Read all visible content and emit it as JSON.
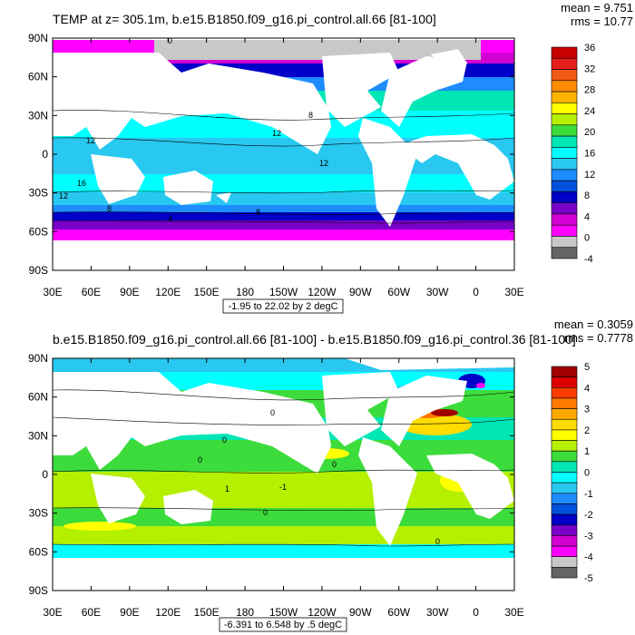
{
  "colors": {
    "land": "#ffffff",
    "frame": "#000000",
    "seaice_gray": "#c8c8c8"
  },
  "panels": [
    {
      "title": "TEMP at z= 305.1m, b.e15.B1850.f09_g16.pi_control.all.66 [81-100]",
      "stats": [
        "mean = 9.751",
        "rms = 10.77"
      ],
      "range_label": "-1.95 to 22.02 by 2 degC",
      "contour_labels": [
        "0",
        "8",
        "12",
        "12",
        "12",
        "16",
        "12",
        "8",
        "8",
        "4"
      ],
      "colorbar": {
        "labels": [
          "36",
          "32",
          "28",
          "24",
          "20",
          "16",
          "12",
          "8",
          "4",
          "0",
          "-4"
        ],
        "colors": [
          "#c80000",
          "#e61e1e",
          "#f05a14",
          "#ff8c00",
          "#ffb400",
          "#ffff00",
          "#b4f000",
          "#3cdc3c",
          "#00e6b4",
          "#00ffff",
          "#28c8f0",
          "#1e8cff",
          "#0050dc",
          "#0000c8",
          "#7800c8",
          "#d200d2",
          "#ff00ff",
          "#c8c8c8",
          "#646464"
        ]
      }
    },
    {
      "title": "b.e15.B1850.f09_g16.pi_control.all.66 [81-100] - b.e15.B1850.f09_g16.pi_control.36 [81-100]",
      "stats": [
        "mean = 0.3059",
        "rms = 0.7778"
      ],
      "range_label": "-6.391 to 6.548 by .5 degC",
      "contour_labels": [
        "0",
        "0",
        "0",
        "0",
        "1",
        "-1",
        "0",
        "0"
      ],
      "colorbar": {
        "labels": [
          "5",
          "4",
          "3",
          "2",
          "1",
          "0",
          "-1",
          "-2",
          "-3",
          "-4",
          "-5"
        ],
        "colors": [
          "#a00000",
          "#dc0000",
          "#ff3c00",
          "#ff7800",
          "#ffaa00",
          "#ffdc00",
          "#ffff00",
          "#b4f000",
          "#3cdc3c",
          "#00e6b4",
          "#00ffff",
          "#28c8f0",
          "#1e8cff",
          "#0050dc",
          "#0000c8",
          "#7800c8",
          "#d200d2",
          "#ff00ff",
          "#c8c8c8",
          "#646464"
        ]
      }
    }
  ],
  "map": {
    "lat_labels": [
      "90N",
      "60N",
      "30N",
      "0",
      "30S",
      "60S",
      "90S"
    ],
    "lon_labels": [
      "30E",
      "60E",
      "90E",
      "120E",
      "150E",
      "180",
      "150W",
      "120W",
      "90W",
      "60W",
      "30W",
      "0",
      "30E"
    ]
  }
}
